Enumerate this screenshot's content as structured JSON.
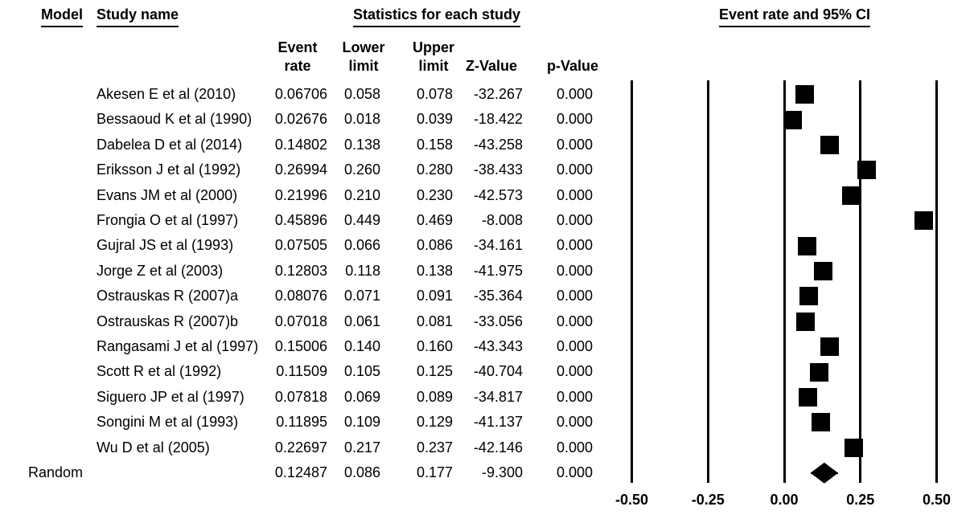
{
  "colors": {
    "foreground": "#000000",
    "background": "#ffffff",
    "marker": "#000000"
  },
  "headers": {
    "model": "Model",
    "study_name": "Study name",
    "stats_group": "Statistics for each study",
    "plot_group": "Event rate and 95% CI"
  },
  "columns": {
    "event_rate_line1": "Event",
    "event_rate_line2": "rate",
    "lower_line1": "Lower",
    "lower_line2": "limit",
    "upper_line1": "Upper",
    "upper_line2": "limit",
    "z_value": "Z-Value",
    "p_value": "p-Value"
  },
  "chart_data": {
    "type": "scatter",
    "subtype": "forest-plot-meta-analysis",
    "title": "Event rate and 95% CI",
    "legend": "none",
    "grid": "vertical-reference-lines",
    "x_axis": {
      "range": [
        -0.5,
        0.5
      ],
      "ticks": [
        {
          "value": -0.5,
          "label": "-0.50"
        },
        {
          "value": -0.25,
          "label": "-0.25"
        },
        {
          "value": 0,
          "label": "0.00"
        },
        {
          "value": 0.25,
          "label": "0.25"
        },
        {
          "value": 0.5,
          "label": "0.50"
        }
      ]
    },
    "marker_color": "#000000",
    "rows": [
      {
        "model": "",
        "study": "Akesen E et al (2010)",
        "rate": "0.06706",
        "lower": "0.058",
        "upper": "0.078",
        "z": "-32.267",
        "p": "0.000",
        "marker": "square"
      },
      {
        "model": "",
        "study": "Bessaoud K et al (1990)",
        "rate": "0.02676",
        "lower": "0.018",
        "upper": "0.039",
        "z": "-18.422",
        "p": "0.000",
        "marker": "square"
      },
      {
        "model": "",
        "study": "Dabelea D et al (2014)",
        "rate": "0.14802",
        "lower": "0.138",
        "upper": "0.158",
        "z": "-43.258",
        "p": "0.000",
        "marker": "square"
      },
      {
        "model": "",
        "study": "Eriksson J et al (1992)",
        "rate": "0.26994",
        "lower": "0.260",
        "upper": "0.280",
        "z": "-38.433",
        "p": "0.000",
        "marker": "square"
      },
      {
        "model": "",
        "study": "Evans JM et al (2000)",
        "rate": "0.21996",
        "lower": "0.210",
        "upper": "0.230",
        "z": "-42.573",
        "p": "0.000",
        "marker": "square"
      },
      {
        "model": "",
        "study": "Frongia O et al (1997)",
        "rate": "0.45896",
        "lower": "0.449",
        "upper": "0.469",
        "z": "-8.008",
        "p": "0.000",
        "marker": "square"
      },
      {
        "model": "",
        "study": "Gujral JS et al (1993)",
        "rate": "0.07505",
        "lower": "0.066",
        "upper": "0.086",
        "z": "-34.161",
        "p": "0.000",
        "marker": "square"
      },
      {
        "model": "",
        "study": "Jorge Z et al (2003)",
        "rate": "0.12803",
        "lower": "0.118",
        "upper": "0.138",
        "z": "-41.975",
        "p": "0.000",
        "marker": "square"
      },
      {
        "model": "",
        "study": "Ostrauskas R (2007)a",
        "rate": "0.08076",
        "lower": "0.071",
        "upper": "0.091",
        "z": "-35.364",
        "p": "0.000",
        "marker": "square"
      },
      {
        "model": "",
        "study": "Ostrauskas R (2007)b",
        "rate": "0.07018",
        "lower": "0.061",
        "upper": "0.081",
        "z": "-33.056",
        "p": "0.000",
        "marker": "square"
      },
      {
        "model": "",
        "study": "Rangasami J et al (1997)",
        "rate": "0.15006",
        "lower": "0.140",
        "upper": "0.160",
        "z": "-43.343",
        "p": "0.000",
        "marker": "square"
      },
      {
        "model": "",
        "study": "Scott R et al (1992)",
        "rate": "0.11509",
        "lower": "0.105",
        "upper": "0.125",
        "z": "-40.704",
        "p": "0.000",
        "marker": "square"
      },
      {
        "model": "",
        "study": "Siguero JP et al (1997)",
        "rate": "0.07818",
        "lower": "0.069",
        "upper": "0.089",
        "z": "-34.817",
        "p": "0.000",
        "marker": "square"
      },
      {
        "model": "",
        "study": "Songini M et al (1993)",
        "rate": "0.11895",
        "lower": "0.109",
        "upper": "0.129",
        "z": "-41.137",
        "p": "0.000",
        "marker": "square"
      },
      {
        "model": "",
        "study": "Wu D et al (2005)",
        "rate": "0.22697",
        "lower": "0.217",
        "upper": "0.237",
        "z": "-42.146",
        "p": "0.000",
        "marker": "square"
      },
      {
        "model": "Random",
        "study": "",
        "rate": "0.12487",
        "lower": "0.086",
        "upper": "0.177",
        "z": "-9.300",
        "p": "0.000",
        "marker": "diamond"
      }
    ]
  }
}
